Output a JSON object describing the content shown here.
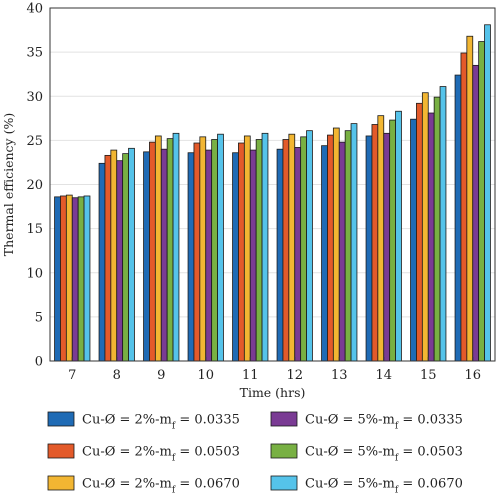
{
  "chart_data": {
    "type": "bar",
    "categories": [
      "7",
      "8",
      "9",
      "10",
      "11",
      "12",
      "13",
      "14",
      "15",
      "16"
    ],
    "xlabel": "Time (hrs)",
    "ylabel": "Thermal efficiency (%)",
    "ylim": [
      0,
      40
    ],
    "yticks": [
      "0",
      "5",
      "10",
      "15",
      "20",
      "25",
      "30",
      "35",
      "40"
    ],
    "grid": true,
    "legend_position": "bottom",
    "series": [
      {
        "name": "Cu-Ø = 2%-mf = 0.0335",
        "color": "#1f6bb5",
        "values": [
          18.6,
          22.4,
          23.7,
          23.6,
          23.6,
          24.0,
          24.4,
          25.5,
          27.4,
          32.4
        ]
      },
      {
        "name": "Cu-Ø = 2%-mf = 0.0503",
        "color": "#e35a2a",
        "values": [
          18.7,
          23.3,
          24.8,
          24.7,
          24.7,
          25.1,
          25.6,
          26.8,
          29.2,
          34.9
        ]
      },
      {
        "name": "Cu-Ø = 2%-mf = 0.0670",
        "color": "#f2b632",
        "values": [
          18.8,
          23.9,
          25.5,
          25.4,
          25.5,
          25.7,
          26.4,
          27.8,
          30.4,
          36.8
        ]
      },
      {
        "name": "Cu-Ø = 5%-mf = 0.0335",
        "color": "#7a3b94",
        "values": [
          18.5,
          22.7,
          24.0,
          23.9,
          23.9,
          24.2,
          24.8,
          25.8,
          28.1,
          33.5
        ]
      },
      {
        "name": "Cu-Ø = 5%-mf = 0.0503",
        "color": "#78b043",
        "values": [
          18.6,
          23.5,
          25.2,
          25.1,
          25.1,
          25.4,
          26.1,
          27.3,
          29.9,
          36.2
        ]
      },
      {
        "name": "Cu-Ø = 5%-mf = 0.0670",
        "color": "#55c3ea",
        "values": [
          18.7,
          24.1,
          25.8,
          25.7,
          25.8,
          26.1,
          26.9,
          28.3,
          31.1,
          38.1
        ]
      }
    ]
  }
}
